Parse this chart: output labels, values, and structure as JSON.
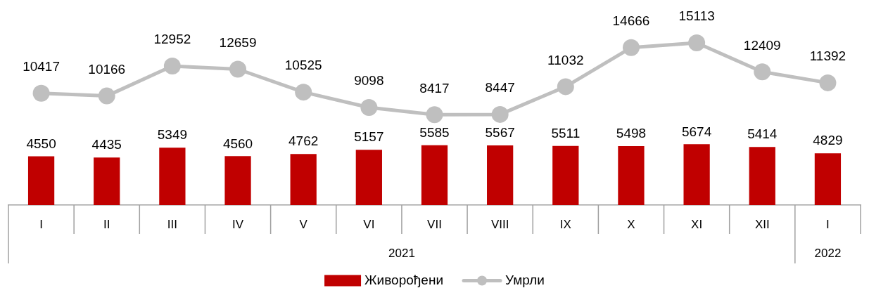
{
  "chart_data": {
    "type": "bar",
    "categories": [
      "I",
      "II",
      "III",
      "IV",
      "V",
      "VI",
      "VII",
      "VIII",
      "IX",
      "X",
      "XI",
      "XII",
      "I"
    ],
    "annotations": [
      "2021",
      "2022"
    ],
    "tick_labels": "x",
    "legend": "bottom",
    "data_labels": true,
    "marker": "circle",
    "series": [
      {
        "name": "Живорођени",
        "color": "#c00000",
        "values": [
          4550,
          4435,
          5349,
          4560,
          4762,
          5157,
          5585,
          5567,
          5511,
          5498,
          5674,
          5414,
          4829
        ]
      },
      {
        "name": "Умрли",
        "type": "line",
        "color": "#bfbfbf",
        "values": [
          10417,
          10166,
          12952,
          12659,
          10525,
          9098,
          8417,
          8447,
          11032,
          14666,
          15113,
          12409,
          11392
        ]
      }
    ]
  }
}
